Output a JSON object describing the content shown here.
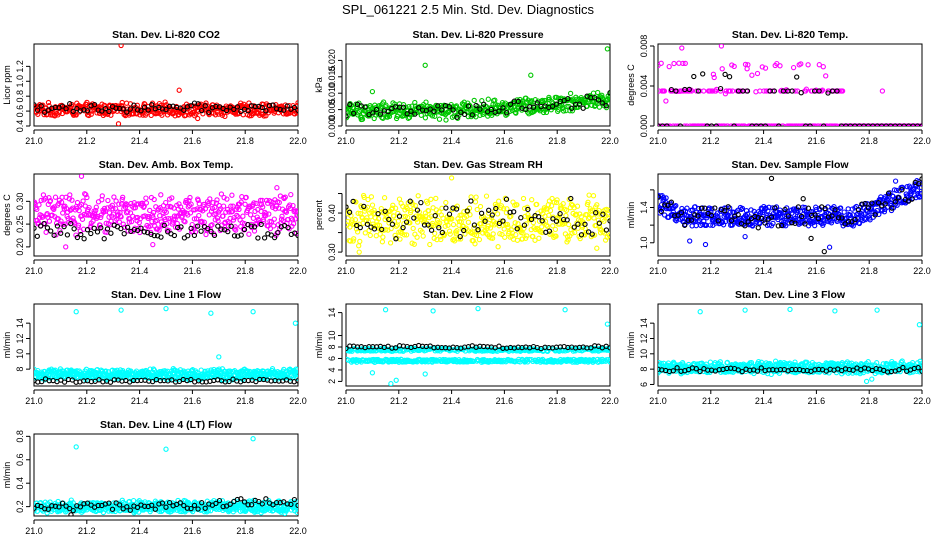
{
  "title": "SPL_061221  2.5 Min. Std. Dev. Diagnostics",
  "colors": {
    "red": "#ff0000",
    "green": "#00c800",
    "magenta": "#ff00ff",
    "yellow": "#ffff00",
    "blue": "#0000ff",
    "cyan": "#00ffff",
    "black": "#000000"
  },
  "chart_data": [
    {
      "type": "scatter",
      "title": "Stan. Dev. Li-820 CO2",
      "ylabel": "Licor ppm",
      "xlim": [
        21.0,
        22.0
      ],
      "ylim": [
        0.4,
        1.5
      ],
      "xticks": [
        21.0,
        21.2,
        21.4,
        21.6,
        21.8,
        22.0
      ],
      "xtick_labels": [
        "21.0",
        "21.2",
        "21.4",
        "21.6",
        "21.8",
        "22.0"
      ],
      "yticks": [
        0.4,
        0.6,
        0.8,
        1.0,
        1.2
      ],
      "ytick_labels": [
        "0.4",
        "0.6",
        "0.8",
        "1.0",
        "1.2"
      ],
      "series": [
        {
          "name": "primary",
          "color": "#ff0000",
          "n": 420,
          "baseline": 0.62,
          "spread": 0.1,
          "outliers": [
            [
              21.33,
              1.48
            ],
            [
              21.32,
              0.43
            ],
            [
              21.55,
              0.88
            ],
            [
              21.62,
              0.5
            ]
          ]
        },
        {
          "name": "black",
          "color": "#000000",
          "n": 75,
          "baseline": 0.64,
          "spread": 0.07,
          "outliers": []
        }
      ]
    },
    {
      "type": "scatter",
      "title": "Stan. Dev. Li-820 Pressure",
      "ylabel": "kPa",
      "xlim": [
        21.0,
        22.0
      ],
      "ylim": [
        0.0,
        0.025
      ],
      "xticks": [
        21.0,
        21.2,
        21.4,
        21.6,
        21.8,
        22.0
      ],
      "xtick_labels": [
        "21.0",
        "21.2",
        "21.4",
        "21.6",
        "21.8",
        "22.0"
      ],
      "yticks": [
        0.0,
        0.005,
        0.01,
        0.015,
        0.02
      ],
      "ytick_labels": [
        "0.000",
        "0.005",
        "0.010",
        "0.015",
        "0.020"
      ],
      "series": [
        {
          "name": "primary",
          "color": "#00c800",
          "n": 450,
          "baseline": 0.0045,
          "spread": 0.003,
          "trend": 0.0035,
          "outliers": [
            [
              21.99,
              0.0235
            ],
            [
              21.3,
              0.0185
            ],
            [
              21.7,
              0.0155
            ],
            [
              21.1,
              0.0105
            ]
          ]
        },
        {
          "name": "black",
          "color": "#000000",
          "n": 70,
          "baseline": 0.0045,
          "spread": 0.0025,
          "trend": 0.0035,
          "outliers": []
        }
      ]
    },
    {
      "type": "scatter",
      "title": "Stan. Dev. Li-820 Temp.",
      "ylabel": "degrees C",
      "xlim": [
        21.0,
        22.0
      ],
      "ylim": [
        0.0,
        0.0082
      ],
      "xticks": [
        21.0,
        21.2,
        21.4,
        21.6,
        21.8,
        22.0
      ],
      "xtick_labels": [
        "21.0",
        "21.2",
        "21.4",
        "21.6",
        "21.8",
        "22.0"
      ],
      "yticks": [
        0.0,
        0.004,
        0.008
      ],
      "ytick_labels": [
        "0.000",
        "0.004",
        "0.008"
      ],
      "series": [
        {
          "name": "primary",
          "color": "#ff00ff",
          "n": 330,
          "levels": [
            0.0,
            0.0035,
            0.005,
            0.006
          ],
          "outliers": [
            [
              21.09,
              0.0078
            ],
            [
              21.24,
              0.008
            ],
            [
              21.03,
              0.0025
            ],
            [
              21.85,
              0.0035
            ]
          ]
        },
        {
          "name": "black",
          "color": "#000000",
          "n": 60,
          "levels": [
            0.0,
            0.0035,
            0.005
          ],
          "outliers": []
        }
      ]
    },
    {
      "type": "scatter",
      "title": "Stan. Dev. Amb. Box Temp.",
      "ylabel": "degrees C",
      "xlim": [
        21.0,
        22.0
      ],
      "ylim": [
        0.18,
        0.36
      ],
      "xticks": [
        21.0,
        21.2,
        21.4,
        21.6,
        21.8,
        22.0
      ],
      "xtick_labels": [
        "21.0",
        "21.2",
        "21.4",
        "21.6",
        "21.8",
        "22.0"
      ],
      "yticks": [
        0.2,
        0.25,
        0.3
      ],
      "ytick_labels": [
        "0.20",
        "0.25",
        "0.30"
      ],
      "series": [
        {
          "name": "primary",
          "color": "#ff00ff",
          "n": 480,
          "baseline": 0.27,
          "spread": 0.05,
          "outliers": [
            [
              21.18,
              0.355
            ],
            [
              21.12,
              0.2
            ],
            [
              21.45,
              0.205
            ],
            [
              21.92,
              0.33
            ]
          ]
        },
        {
          "name": "black",
          "color": "#000000",
          "n": 80,
          "baseline": 0.235,
          "spread": 0.02,
          "outliers": []
        }
      ]
    },
    {
      "type": "scatter",
      "title": "Stan. Dev. Gas Stream RH",
      "ylabel": "percent",
      "xlim": [
        21.0,
        22.0
      ],
      "ylim": [
        0.29,
        0.5
      ],
      "xticks": [
        21.0,
        21.2,
        21.4,
        21.6,
        21.8,
        22.0
      ],
      "xtick_labels": [
        "21.0",
        "21.2",
        "21.4",
        "21.6",
        "21.8",
        "22.0"
      ],
      "yticks": [
        0.3,
        0.35,
        0.4,
        0.45
      ],
      "ytick_labels": [
        "0.30",
        "",
        "0.40",
        ""
      ],
      "series": [
        {
          "name": "primary",
          "color": "#ffff00",
          "n": 480,
          "baseline": 0.38,
          "spread": 0.07,
          "outliers": [
            [
              21.4,
              0.49
            ],
            [
              21.05,
              0.3
            ],
            [
              21.95,
              0.31
            ]
          ]
        },
        {
          "name": "black",
          "color": "#000000",
          "n": 75,
          "baseline": 0.385,
          "spread": 0.06,
          "outliers": []
        }
      ]
    },
    {
      "type": "scatter",
      "title": "Stan. Dev. Sample Flow",
      "ylabel": "ml/min",
      "xlim": [
        21.0,
        22.0
      ],
      "ylim": [
        0.85,
        1.78
      ],
      "xticks": [
        21.0,
        21.2,
        21.4,
        21.6,
        21.8,
        22.0
      ],
      "xtick_labels": [
        "21.0",
        "21.2",
        "21.4",
        "21.6",
        "21.8",
        "22.0"
      ],
      "yticks": [
        1.0,
        1.2,
        1.4,
        1.6
      ],
      "ytick_labels": [
        "1.0",
        "",
        "1.4",
        ""
      ],
      "series": [
        {
          "name": "primary",
          "color": "#0000ff",
          "n": 520,
          "profile": "flow",
          "outliers": [
            [
              21.12,
              1.02
            ],
            [
              21.18,
              0.98
            ],
            [
              21.33,
              1.07
            ],
            [
              21.65,
              0.95
            ],
            [
              21.9,
              1.7
            ]
          ]
        },
        {
          "name": "black",
          "color": "#000000",
          "n": 80,
          "profile": "flow",
          "outliers": [
            [
              21.43,
              1.73
            ],
            [
              21.38,
              1.17
            ],
            [
              21.58,
              1.05
            ],
            [
              21.63,
              0.9
            ],
            [
              21.55,
              1.5
            ]
          ]
        }
      ]
    },
    {
      "type": "scatter",
      "title": "Stan. Dev. Line 1 Flow",
      "ylabel": "ml/min",
      "xlim": [
        21.0,
        22.0
      ],
      "ylim": [
        5.8,
        16.5
      ],
      "xticks": [
        21.0,
        21.2,
        21.4,
        21.6,
        21.8,
        22.0
      ],
      "xtick_labels": [
        "21.0",
        "21.2",
        "21.4",
        "21.6",
        "21.8",
        "22.0"
      ],
      "yticks": [
        8,
        10,
        12,
        14
      ],
      "ytick_labels": [
        "8",
        "10",
        "12",
        "14"
      ],
      "series": [
        {
          "name": "primary",
          "color": "#00ffff",
          "n": 560,
          "baseline": 7.3,
          "spread": 0.8,
          "outliers": [
            [
              21.16,
              15.5
            ],
            [
              21.33,
              15.7
            ],
            [
              21.5,
              15.9
            ],
            [
              21.67,
              15.3
            ],
            [
              21.83,
              15.5
            ],
            [
              21.99,
              14.0
            ],
            [
              21.7,
              9.6
            ]
          ]
        },
        {
          "name": "black",
          "color": "#000000",
          "n": 70,
          "baseline": 6.5,
          "spread": 0.25,
          "outliers": []
        }
      ]
    },
    {
      "type": "scatter",
      "title": "Stan. Dev. Line 2 Flow",
      "ylabel": "ml/min",
      "xlim": [
        21.0,
        22.0
      ],
      "ylim": [
        1.2,
        15.5
      ],
      "xticks": [
        21.0,
        21.2,
        21.4,
        21.6,
        21.8,
        22.0
      ],
      "xtick_labels": [
        "21.0",
        "21.2",
        "21.4",
        "21.6",
        "21.8",
        "22.0"
      ],
      "yticks": [
        2,
        4,
        6,
        8,
        10,
        14
      ],
      "ytick_labels": [
        "2",
        "4",
        "6",
        "8",
        "10",
        "14"
      ],
      "series": [
        {
          "name": "primary",
          "color": "#00ffff",
          "n": 620,
          "bands": [
            5.6,
            7.5
          ],
          "spread": 0.5,
          "outliers": [
            [
              21.15,
              14.5
            ],
            [
              21.33,
              14.3
            ],
            [
              21.5,
              14.7
            ],
            [
              21.83,
              14.5
            ],
            [
              21.99,
              12.0
            ],
            [
              21.17,
              1.6
            ],
            [
              21.19,
              2.2
            ],
            [
              21.3,
              3.3
            ],
            [
              21.1,
              3.5
            ]
          ]
        },
        {
          "name": "black",
          "color": "#000000",
          "n": 70,
          "baseline": 8.0,
          "spread": 0.3,
          "outliers": []
        }
      ]
    },
    {
      "type": "scatter",
      "title": "Stan. Dev. Line 3 Flow",
      "ylabel": "ml/min",
      "xlim": [
        21.0,
        22.0
      ],
      "ylim": [
        5.8,
        16.5
      ],
      "xticks": [
        21.0,
        21.2,
        21.4,
        21.6,
        21.8,
        22.0
      ],
      "xtick_labels": [
        "21.0",
        "21.2",
        "21.4",
        "21.6",
        "21.8",
        "22.0"
      ],
      "yticks": [
        6,
        8,
        10,
        12,
        14
      ],
      "ytick_labels": [
        "6",
        "8",
        "10",
        "12",
        "14"
      ],
      "series": [
        {
          "name": "primary",
          "color": "#00ffff",
          "n": 560,
          "baseline": 8.2,
          "spread": 0.9,
          "outliers": [
            [
              21.16,
              15.5
            ],
            [
              21.33,
              15.7
            ],
            [
              21.5,
              15.8
            ],
            [
              21.67,
              15.6
            ],
            [
              21.83,
              15.7
            ],
            [
              21.99,
              13.8
            ],
            [
              21.79,
              6.4
            ],
            [
              21.81,
              6.7
            ]
          ]
        },
        {
          "name": "black",
          "color": "#000000",
          "n": 70,
          "baseline": 7.9,
          "spread": 0.35,
          "outliers": []
        }
      ]
    },
    {
      "type": "scatter",
      "title": "Stan. Dev. Line 4 (LT) Flow",
      "ylabel": "ml/min",
      "xlim": [
        21.0,
        22.0
      ],
      "ylim": [
        0.12,
        0.82
      ],
      "xticks": [
        21.0,
        21.2,
        21.4,
        21.6,
        21.8,
        22.0
      ],
      "xtick_labels": [
        "21.0",
        "21.2",
        "21.4",
        "21.6",
        "21.8",
        "22.0"
      ],
      "yticks": [
        0.2,
        0.4,
        0.6,
        0.8
      ],
      "ytick_labels": [
        "0.2",
        "0.4",
        "0.6",
        "0.8"
      ],
      "series": [
        {
          "name": "primary",
          "color": "#00ffff",
          "n": 560,
          "baseline": 0.2,
          "spread": 0.06,
          "outliers": [
            [
              21.16,
              0.71
            ],
            [
              21.5,
              0.69
            ],
            [
              21.83,
              0.78
            ]
          ]
        },
        {
          "name": "black",
          "color": "#000000",
          "n": 75,
          "baseline": 0.2,
          "spread": 0.05,
          "trend": 0.05,
          "outliers": [
            [
              21.14,
              0.13
            ]
          ]
        }
      ]
    }
  ]
}
